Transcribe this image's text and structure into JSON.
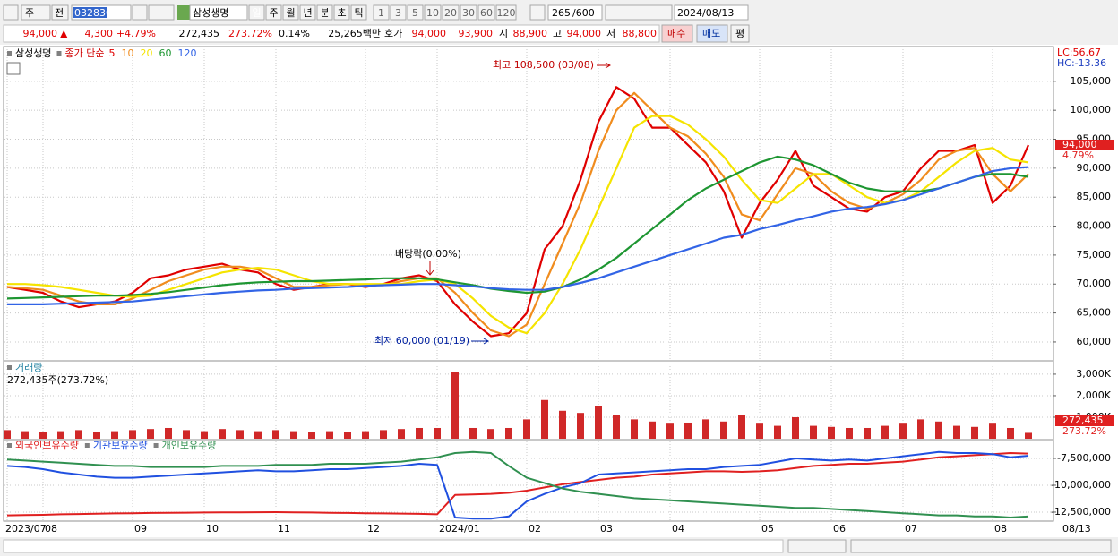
{
  "toolbar": {
    "period": "주",
    "prev": "전",
    "code": "032830",
    "name": "삼성생명",
    "units": [
      "일",
      "주",
      "월",
      "년",
      "분",
      "초",
      "틱"
    ],
    "steps": [
      "1",
      "3",
      "5",
      "10",
      "20",
      "30",
      "60",
      "120"
    ],
    "count": "265",
    "max": "/600",
    "date": "2024/08/13"
  },
  "quote": {
    "price": "94,000",
    "arrow": "▲",
    "change": "4,300",
    "change_pct": "+4.79%",
    "volume": "272,435",
    "volume_pct": "273.72%",
    "turnover_pct": "0.14%",
    "amount": "25,265백만",
    "hoga_label": "호가",
    "ask": "94,000",
    "bid": "93,900",
    "open_label": "시",
    "open": "88,900",
    "high_label": "고",
    "high": "94,000",
    "low_label": "저",
    "low": "88,800",
    "buy": "매수",
    "sell": "매도",
    "avg": "평"
  },
  "chart_data": [
    {
      "type": "line",
      "title": "삼성생명",
      "legend_prefix": "종가 단순",
      "high_note": "최고 108,500 (03/08)",
      "low_note": "최저 60,000 (01/19)",
      "dividend_note": "배당락(0.00%)",
      "lc": "LC:56.67",
      "hc": "HC:-13.36",
      "last_label": "94,000",
      "last_change": "4.79%",
      "grid": true,
      "ylim": [
        56900,
        111000
      ],
      "yticks": [
        {
          "value": 60000,
          "label": "60,000"
        },
        {
          "value": 65000,
          "label": "65,000"
        },
        {
          "value": 70000,
          "label": "70,000"
        },
        {
          "value": 75000,
          "label": "75,000"
        },
        {
          "value": 80000,
          "label": "80,000"
        },
        {
          "value": 85000,
          "label": "85,000"
        },
        {
          "value": 90000,
          "label": "90,000"
        },
        {
          "value": 95000,
          "label": "95,000"
        },
        {
          "value": 100000,
          "label": "100,000"
        },
        {
          "value": 105000,
          "label": "105,000"
        }
      ],
      "series": [
        {
          "name": "5",
          "color": "#e00000",
          "values": [
            69500,
            69000,
            68500,
            67000,
            66000,
            66500,
            67000,
            68500,
            71000,
            71500,
            72500,
            73000,
            73500,
            72500,
            72000,
            70000,
            69000,
            69500,
            70000,
            70000,
            69500,
            70000,
            71000,
            71500,
            70500,
            66500,
            63500,
            61000,
            61500,
            65000,
            76000,
            80000,
            88000,
            98000,
            104000,
            102000,
            97000,
            97000,
            94000,
            91000,
            86000,
            78000,
            84000,
            88000,
            93000,
            87000,
            85000,
            83000,
            82500,
            85000,
            86000,
            90000,
            93000,
            93000,
            94000,
            84000,
            87000,
            94000
          ]
        },
        {
          "name": "10",
          "color": "#f08c1e",
          "values": [
            69500,
            69300,
            69000,
            68000,
            67000,
            66500,
            66500,
            67500,
            69000,
            70500,
            71500,
            72500,
            73000,
            73000,
            72500,
            71000,
            69500,
            69500,
            69800,
            70000,
            69800,
            69800,
            70500,
            71000,
            71000,
            68500,
            65000,
            62000,
            61000,
            63000,
            70000,
            77000,
            84000,
            93000,
            100000,
            103000,
            100000,
            97000,
            95500,
            92500,
            88500,
            82000,
            81000,
            85500,
            90000,
            89000,
            86000,
            84000,
            83000,
            84000,
            85500,
            88000,
            91500,
            93000,
            93500,
            89000,
            86000,
            89000
          ]
        },
        {
          "name": "20",
          "color": "#f5e400",
          "values": [
            70000,
            70000,
            69800,
            69500,
            69000,
            68500,
            68000,
            67800,
            68000,
            69000,
            70000,
            71000,
            72000,
            72500,
            72800,
            72500,
            71500,
            70500,
            70000,
            70000,
            70000,
            70000,
            70000,
            70500,
            70800,
            70000,
            67500,
            64500,
            62500,
            61500,
            65000,
            70000,
            76000,
            83000,
            90000,
            97000,
            99000,
            99000,
            97500,
            95000,
            92000,
            88000,
            84500,
            84000,
            86500,
            89000,
            89000,
            87000,
            85000,
            84000,
            84500,
            86000,
            88500,
            91000,
            93000,
            93500,
            91500,
            91000
          ]
        },
        {
          "name": "60",
          "color": "#1e9632",
          "values": [
            67500,
            67600,
            67700,
            67800,
            67900,
            68000,
            68000,
            68100,
            68300,
            68600,
            69000,
            69400,
            69800,
            70100,
            70300,
            70400,
            70500,
            70500,
            70600,
            70700,
            70800,
            71000,
            71000,
            71000,
            70800,
            70300,
            69800,
            69200,
            68800,
            68500,
            68700,
            69500,
            70800,
            72500,
            74500,
            77000,
            79500,
            82000,
            84500,
            86500,
            88000,
            89500,
            91000,
            92000,
            91500,
            90500,
            89000,
            87500,
            86500,
            86000,
            86000,
            86000,
            86500,
            87500,
            88500,
            89000,
            89000,
            88500
          ]
        },
        {
          "name": "120",
          "color": "#3264e6",
          "values": [
            66500,
            66500,
            66500,
            66600,
            66700,
            66800,
            66900,
            67000,
            67300,
            67600,
            67900,
            68200,
            68500,
            68700,
            68900,
            69000,
            69200,
            69300,
            69400,
            69500,
            69700,
            69800,
            69900,
            70000,
            70000,
            69800,
            69600,
            69300,
            69100,
            69000,
            69000,
            69500,
            70200,
            71000,
            72000,
            73000,
            74000,
            75000,
            76000,
            77000,
            78000,
            78500,
            79500,
            80200,
            81000,
            81700,
            82500,
            83000,
            83300,
            83800,
            84500,
            85500,
            86500,
            87500,
            88500,
            89500,
            90000,
            90200
          ]
        }
      ]
    },
    {
      "type": "bar",
      "title": "거래량",
      "subtitle": "272,435주(273.72%)",
      "last_label": "272,435",
      "last_pct": "273.72%",
      "color": "#d02828",
      "grid": true,
      "ylim": [
        0,
        3580000
      ],
      "yticks": [
        {
          "value": 1000000,
          "label": "1,000K"
        },
        {
          "value": 2000000,
          "label": "2,000K"
        },
        {
          "value": 3000000,
          "label": "3,000K"
        }
      ],
      "values": [
        400000,
        350000,
        300000,
        350000,
        400000,
        300000,
        350000,
        400000,
        450000,
        500000,
        400000,
        350000,
        450000,
        400000,
        350000,
        400000,
        350000,
        300000,
        350000,
        300000,
        350000,
        400000,
        450000,
        500000,
        500000,
        3100000,
        500000,
        450000,
        500000,
        900000,
        1800000,
        1300000,
        1200000,
        1500000,
        1100000,
        900000,
        800000,
        700000,
        750000,
        900000,
        800000,
        1100000,
        700000,
        600000,
        1000000,
        600000,
        550000,
        500000,
        500000,
        600000,
        700000,
        900000,
        800000,
        600000,
        550000,
        700000,
        500000,
        272435
      ]
    },
    {
      "type": "line",
      "end_label": "08/13",
      "grid": true,
      "ylim": [
        -13170000,
        -6000000
      ],
      "yticks": [
        {
          "value": -12500000,
          "label": "-12,500,000"
        },
        {
          "value": -10000000,
          "label": "-10,000,000"
        },
        {
          "value": -7500000,
          "label": "-7,500,000"
        }
      ],
      "categories": [
        "2023/07",
        null,
        "08",
        null,
        null,
        null,
        null,
        "09",
        null,
        null,
        null,
        "10",
        null,
        null,
        null,
        "11",
        null,
        null,
        null,
        null,
        "12",
        null,
        null,
        null,
        "2024/01",
        null,
        null,
        null,
        null,
        "02",
        null,
        null,
        null,
        "03",
        null,
        null,
        null,
        "04",
        null,
        null,
        null,
        null,
        "05",
        null,
        null,
        null,
        "06",
        null,
        null,
        null,
        "07",
        null,
        null,
        null,
        null,
        "08",
        null,
        null
      ],
      "series": [
        {
          "name": "외국인보유수량",
          "color": "#e02020",
          "values": [
            -12800000,
            -12780000,
            -12750000,
            -12700000,
            -12680000,
            -12650000,
            -12620000,
            -12600000,
            -12580000,
            -12560000,
            -12550000,
            -12540000,
            -12530000,
            -12520000,
            -12510000,
            -12500000,
            -12520000,
            -12540000,
            -12560000,
            -12580000,
            -12600000,
            -12620000,
            -12640000,
            -12660000,
            -12700000,
            -10900000,
            -10850000,
            -10800000,
            -10700000,
            -10500000,
            -10200000,
            -9900000,
            -9700000,
            -9500000,
            -9300000,
            -9200000,
            -9000000,
            -8900000,
            -8800000,
            -8700000,
            -8700000,
            -8750000,
            -8700000,
            -8600000,
            -8400000,
            -8200000,
            -8100000,
            -8000000,
            -8000000,
            -7900000,
            -7800000,
            -7600000,
            -7400000,
            -7300000,
            -7200000,
            -7100000,
            -7000000,
            -7050000
          ]
        },
        {
          "name": "기관보유수량",
          "color": "#2050e0",
          "values": [
            -8200000,
            -8300000,
            -8500000,
            -8800000,
            -9000000,
            -9200000,
            -9300000,
            -9300000,
            -9200000,
            -9100000,
            -9000000,
            -8900000,
            -8800000,
            -8700000,
            -8600000,
            -8700000,
            -8700000,
            -8600000,
            -8500000,
            -8500000,
            -8400000,
            -8300000,
            -8200000,
            -8000000,
            -8100000,
            -13000000,
            -13100000,
            -13100000,
            -12900000,
            -11500000,
            -10800000,
            -10200000,
            -9800000,
            -9000000,
            -8900000,
            -8800000,
            -8700000,
            -8600000,
            -8500000,
            -8500000,
            -8300000,
            -8200000,
            -8100000,
            -7800000,
            -7500000,
            -7600000,
            -7700000,
            -7600000,
            -7700000,
            -7500000,
            -7300000,
            -7100000,
            -6900000,
            -7000000,
            -7000000,
            -7100000,
            -7400000,
            -7250000
          ]
        },
        {
          "name": "개인보유수량",
          "color": "#309050",
          "values": [
            -7600000,
            -7700000,
            -7800000,
            -7900000,
            -8000000,
            -8100000,
            -8200000,
            -8200000,
            -8300000,
            -8300000,
            -8300000,
            -8300000,
            -8200000,
            -8200000,
            -8200000,
            -8100000,
            -8100000,
            -8100000,
            -8000000,
            -8000000,
            -8000000,
            -7900000,
            -7800000,
            -7600000,
            -7400000,
            -7000000,
            -6900000,
            -7000000,
            -8200000,
            -9300000,
            -9800000,
            -10300000,
            -10600000,
            -10800000,
            -11000000,
            -11200000,
            -11300000,
            -11400000,
            -11500000,
            -11600000,
            -11700000,
            -11800000,
            -11900000,
            -12000000,
            -12100000,
            -12100000,
            -12200000,
            -12300000,
            -12400000,
            -12500000,
            -12600000,
            -12700000,
            -12800000,
            -12800000,
            -12900000,
            -12900000,
            -13000000,
            -12900000
          ]
        }
      ]
    }
  ]
}
